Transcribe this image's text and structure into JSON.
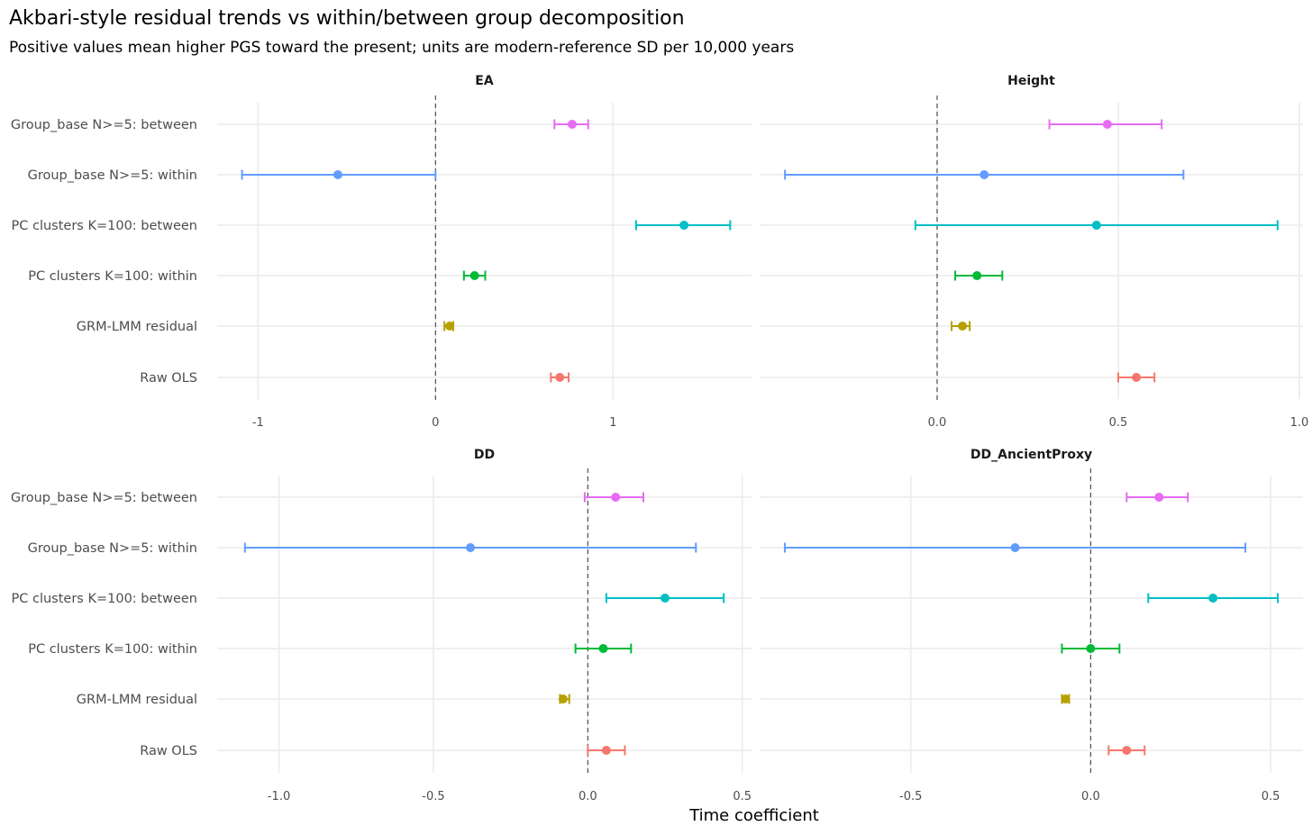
{
  "title": "Akbari-style residual trends vs within/between group decomposition",
  "subtitle": "Positive values mean higher PGS toward the present; units are modern-reference SD per 10,000 years",
  "xlabel": "Time coefficient",
  "methods": [
    "Group_base N>=5: between",
    "Group_base N>=5: within",
    "PC clusters K=100: between",
    "PC clusters K=100: within",
    "GRM-LMM residual",
    "Raw OLS"
  ],
  "colors": {
    "Group_base N>=5: between": "#E76BF3",
    "Group_base N>=5: within": "#619CFF",
    "PC clusters K=100: between": "#00BFC4",
    "PC clusters K=100: within": "#00BA38",
    "GRM-LMM residual": "#B79F00",
    "Raw OLS": "#F8766D"
  },
  "chart_data": [
    {
      "type": "errorbar",
      "panel": "EA",
      "xlim": [
        -1.23,
        1.78
      ],
      "xticks": [
        -1,
        0,
        1
      ],
      "xtick_labels": [
        "-1",
        "0",
        "1"
      ],
      "points": [
        {
          "method": "Group_base N>=5: between",
          "estimate": 0.77,
          "lower": 0.67,
          "upper": 0.86
        },
        {
          "method": "Group_base N>=5: within",
          "estimate": -0.55,
          "lower": -1.09,
          "upper": 0.0
        },
        {
          "method": "PC clusters K=100: between",
          "estimate": 1.4,
          "lower": 1.13,
          "upper": 1.66
        },
        {
          "method": "PC clusters K=100: within",
          "estimate": 0.22,
          "lower": 0.16,
          "upper": 0.28
        },
        {
          "method": "GRM-LMM residual",
          "estimate": 0.08,
          "lower": 0.05,
          "upper": 0.1
        },
        {
          "method": "Raw OLS",
          "estimate": 0.7,
          "lower": 0.65,
          "upper": 0.75
        }
      ]
    },
    {
      "type": "errorbar",
      "panel": "Height",
      "xlim": [
        -0.49,
        1.01
      ],
      "xticks": [
        0.0,
        0.5,
        1.0
      ],
      "xtick_labels": [
        "0.0",
        "0.5",
        "1.0"
      ],
      "points": [
        {
          "method": "Group_base N>=5: between",
          "estimate": 0.47,
          "lower": 0.31,
          "upper": 0.62
        },
        {
          "method": "Group_base N>=5: within",
          "estimate": 0.13,
          "lower": -0.42,
          "upper": 0.68
        },
        {
          "method": "PC clusters K=100: between",
          "estimate": 0.44,
          "lower": -0.06,
          "upper": 0.94
        },
        {
          "method": "PC clusters K=100: within",
          "estimate": 0.11,
          "lower": 0.05,
          "upper": 0.18
        },
        {
          "method": "GRM-LMM residual",
          "estimate": 0.07,
          "lower": 0.04,
          "upper": 0.09
        },
        {
          "method": "Raw OLS",
          "estimate": 0.55,
          "lower": 0.5,
          "upper": 0.6
        }
      ]
    },
    {
      "type": "errorbar",
      "panel": "DD",
      "xlim": [
        -1.2,
        0.53
      ],
      "xticks": [
        -1.0,
        -0.5,
        0.0,
        0.5
      ],
      "xtick_labels": [
        "-1.0",
        "-0.5",
        "0.0",
        "0.5"
      ],
      "points": [
        {
          "method": "Group_base N>=5: between",
          "estimate": 0.09,
          "lower": -0.01,
          "upper": 0.18
        },
        {
          "method": "Group_base N>=5: within",
          "estimate": -0.38,
          "lower": -1.11,
          "upper": 0.35
        },
        {
          "method": "PC clusters K=100: between",
          "estimate": 0.25,
          "lower": 0.06,
          "upper": 0.44
        },
        {
          "method": "PC clusters K=100: within",
          "estimate": 0.05,
          "lower": -0.04,
          "upper": 0.14
        },
        {
          "method": "GRM-LMM residual",
          "estimate": -0.08,
          "lower": -0.09,
          "upper": -0.06
        },
        {
          "method": "Raw OLS",
          "estimate": 0.06,
          "lower": 0.0,
          "upper": 0.12
        }
      ]
    },
    {
      "type": "errorbar",
      "panel": "DD_AncientProxy",
      "xlim": [
        -0.92,
        0.59
      ],
      "xticks": [
        -0.5,
        0.0,
        0.5
      ],
      "xtick_labels": [
        "-0.5",
        "0.0",
        "0.5"
      ],
      "points": [
        {
          "method": "Group_base N>=5: between",
          "estimate": 0.19,
          "lower": 0.1,
          "upper": 0.27
        },
        {
          "method": "Group_base N>=5: within",
          "estimate": -0.21,
          "lower": -0.85,
          "upper": 0.43
        },
        {
          "method": "PC clusters K=100: between",
          "estimate": 0.34,
          "lower": 0.16,
          "upper": 0.52
        },
        {
          "method": "PC clusters K=100: within",
          "estimate": 0.0,
          "lower": -0.08,
          "upper": 0.08
        },
        {
          "method": "GRM-LMM residual",
          "estimate": -0.07,
          "lower": -0.08,
          "upper": -0.06
        },
        {
          "method": "Raw OLS",
          "estimate": 0.1,
          "lower": 0.05,
          "upper": 0.15
        }
      ]
    }
  ]
}
